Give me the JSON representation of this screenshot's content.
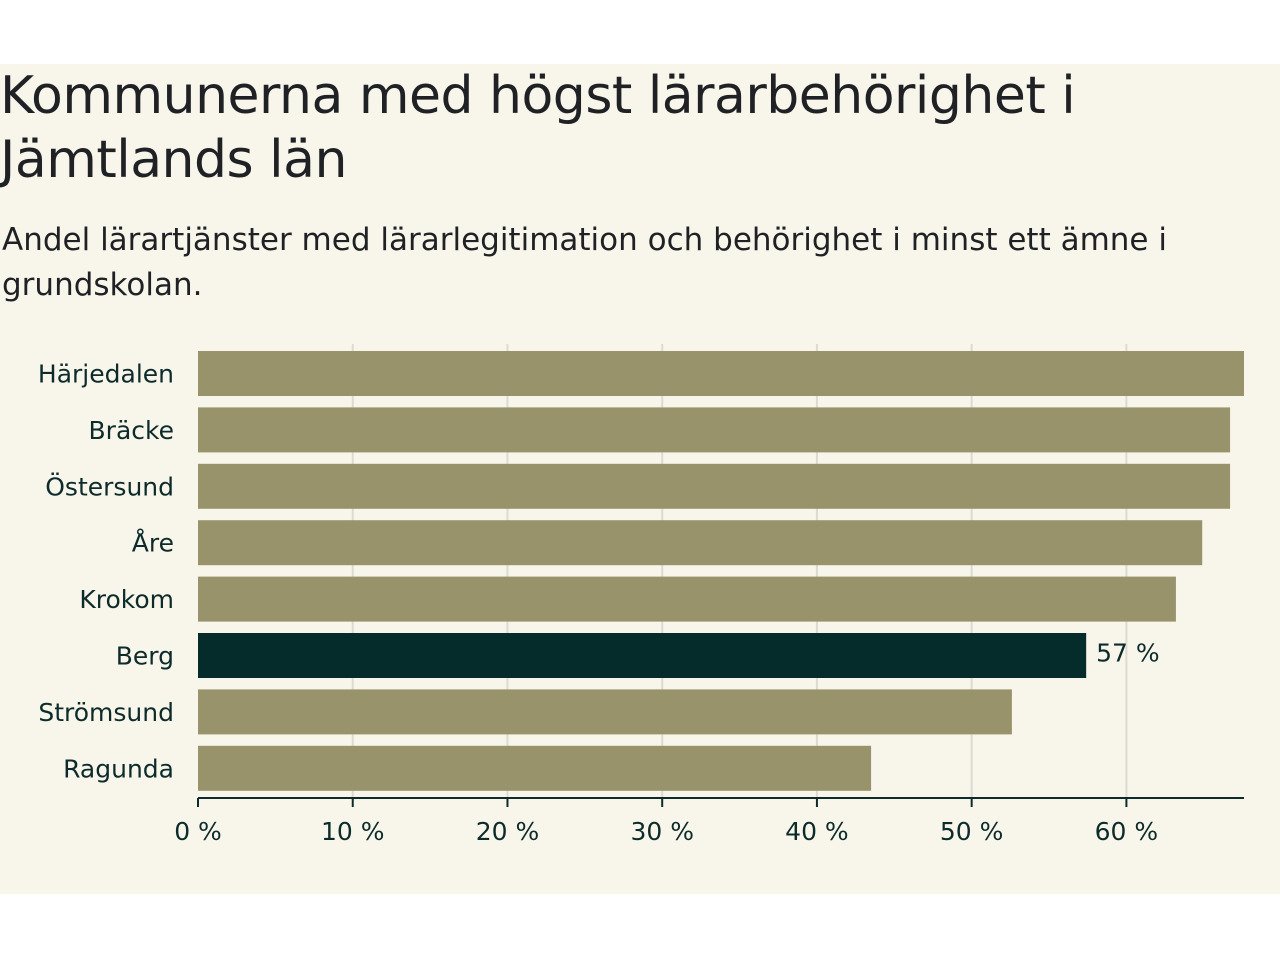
{
  "chart_data": {
    "type": "bar",
    "orientation": "horizontal",
    "title": "Kommunerna med högst lärarbehörighet i Jämtlands län",
    "subtitle": "Andel lärartjänster med lärarlegitimation och behörighet i minst ett ämne i grundskolan.",
    "categories": [
      "Härjedalen",
      "Bräcke",
      "Östersund",
      "Åre",
      "Krokom",
      "Berg",
      "Strömsund",
      "Ragunda"
    ],
    "values": [
      67.6,
      66.7,
      66.7,
      64.9,
      63.2,
      57.4,
      52.6,
      43.5
    ],
    "highlight": {
      "category": "Berg",
      "label": "57 %"
    },
    "xlim": [
      0,
      67.6
    ],
    "ticks": [
      0,
      10,
      20,
      30,
      40,
      50,
      60
    ],
    "tick_labels": [
      "0 %",
      "10 %",
      "20 %",
      "30 %",
      "40 %",
      "50 %",
      "60 %"
    ],
    "xlabel": "",
    "ylabel": "",
    "grid": true,
    "colors": {
      "bar": "#99936c",
      "highlight": "#062b2b",
      "grid": "#dcdbd3",
      "axis": "#0d2b2b",
      "text": "#0d2b2b"
    }
  }
}
